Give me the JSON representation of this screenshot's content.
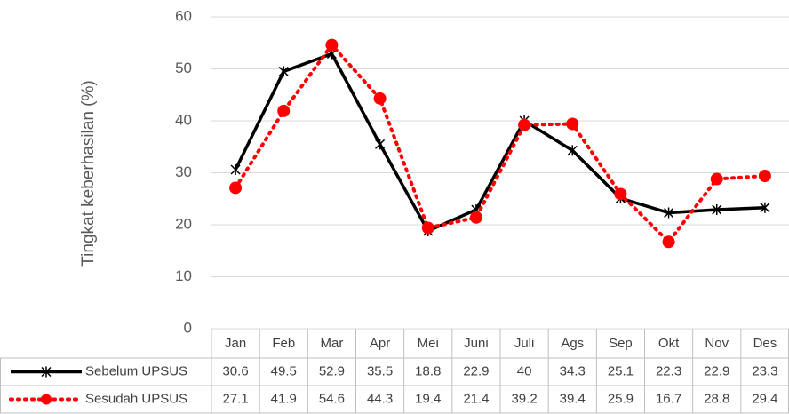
{
  "chart_data": {
    "type": "line",
    "y_label": "Tingkat keberhasilan (%)",
    "categories": [
      "Jan",
      "Feb",
      "Mar",
      "Apr",
      "Mei",
      "Juni",
      "Juli",
      "Ags",
      "Sep",
      "Okt",
      "Nov",
      "Des"
    ],
    "series": [
      {
        "name": "Sebelum UPSUS",
        "color": "#000000",
        "line_style": "solid",
        "marker": "x",
        "values": [
          30.6,
          49.5,
          52.9,
          35.5,
          18.8,
          22.9,
          40,
          34.3,
          25.1,
          22.3,
          22.9,
          23.3
        ]
      },
      {
        "name": "Sesudah UPSUS",
        "color": "#ff0000",
        "line_style": "dotted",
        "marker": "circle",
        "values": [
          27.1,
          41.9,
          54.6,
          44.3,
          19.4,
          21.4,
          39.2,
          39.4,
          25.9,
          16.7,
          28.8,
          29.4
        ]
      }
    ],
    "ylim": [
      0,
      60
    ],
    "yticks": [
      0,
      10,
      20,
      30,
      40,
      50,
      60
    ],
    "grid": true
  }
}
